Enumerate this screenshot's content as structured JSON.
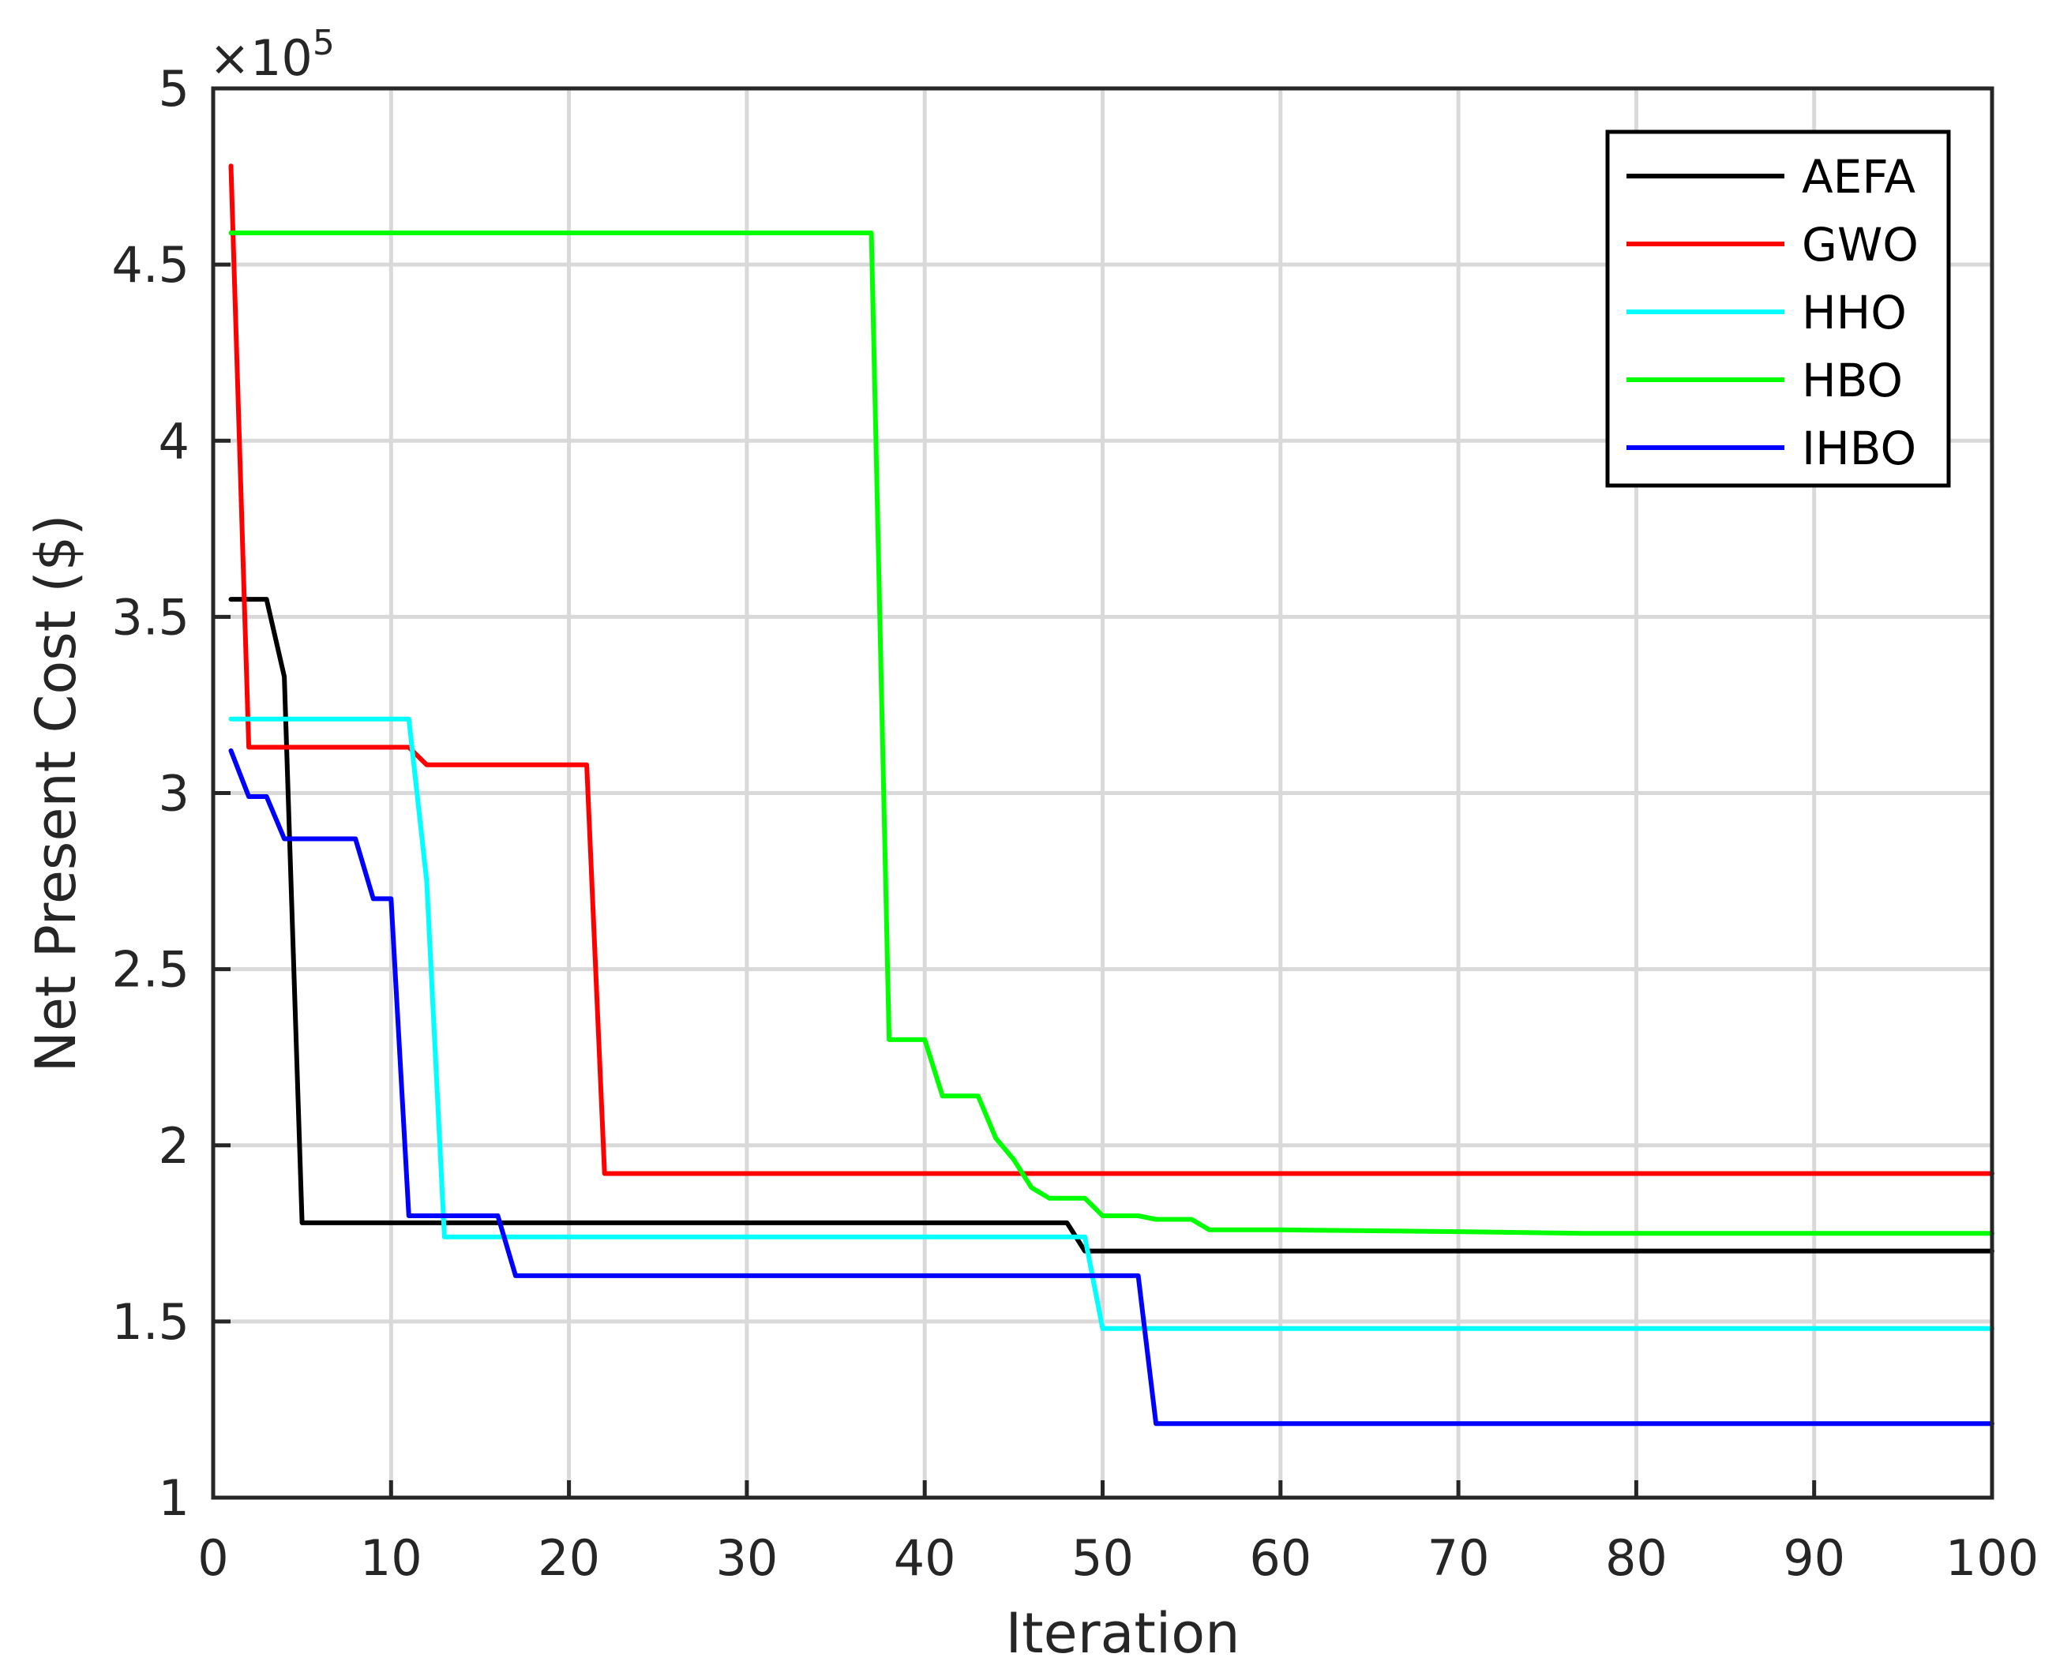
{
  "chart_data": {
    "type": "line",
    "xlabel": "Iteration",
    "ylabel": "Net Present Cost ($)",
    "y_multiplier_label": "×10",
    "y_multiplier_exponent": "5",
    "xlim": [
      0,
      100
    ],
    "ylim": [
      1,
      5
    ],
    "xticks": [
      0,
      10,
      20,
      30,
      40,
      50,
      60,
      70,
      80,
      90,
      100
    ],
    "yticks": [
      1,
      1.5,
      2,
      2.5,
      3,
      3.5,
      4,
      4.5,
      5
    ],
    "ytick_labels": [
      "1",
      "1.5",
      "2",
      "2.5",
      "3",
      "3.5",
      "4",
      "4.5",
      "5"
    ],
    "grid": true,
    "legend_position": "top-right",
    "series": [
      {
        "name": "AEFA",
        "color": "#000000",
        "x": [
          1,
          3,
          4,
          5,
          48,
          49,
          100
        ],
        "y": [
          3.55,
          3.55,
          3.33,
          1.78,
          1.78,
          1.7,
          1.7
        ]
      },
      {
        "name": "GWO",
        "color": "#ff0000",
        "x": [
          1,
          2,
          11,
          12,
          21,
          22,
          100
        ],
        "y": [
          4.78,
          3.13,
          3.13,
          3.08,
          3.08,
          1.92,
          1.92
        ]
      },
      {
        "name": "HHO",
        "color": "#00ffff",
        "x": [
          1,
          11,
          12,
          13,
          49,
          50,
          100
        ],
        "y": [
          3.21,
          3.21,
          2.75,
          1.74,
          1.74,
          1.48,
          1.48
        ]
      },
      {
        "name": "HBO",
        "color": "#00ff00",
        "x": [
          1,
          37,
          38,
          40,
          41,
          43,
          44,
          45,
          46,
          47,
          48,
          49,
          50,
          52,
          53,
          55,
          56,
          60,
          70,
          77,
          100
        ],
        "y": [
          4.59,
          4.59,
          2.3,
          2.3,
          2.14,
          2.14,
          2.02,
          1.96,
          1.88,
          1.85,
          1.85,
          1.85,
          1.8,
          1.8,
          1.79,
          1.79,
          1.76,
          1.76,
          1.755,
          1.75,
          1.75
        ]
      },
      {
        "name": "IHBO",
        "color": "#0000ff",
        "x": [
          1,
          2,
          3,
          4,
          8,
          9,
          10,
          11,
          16,
          17,
          52,
          53,
          100
        ],
        "y": [
          3.12,
          2.99,
          2.99,
          2.87,
          2.87,
          2.7,
          2.7,
          1.8,
          1.8,
          1.63,
          1.63,
          1.21,
          1.21
        ]
      }
    ]
  }
}
